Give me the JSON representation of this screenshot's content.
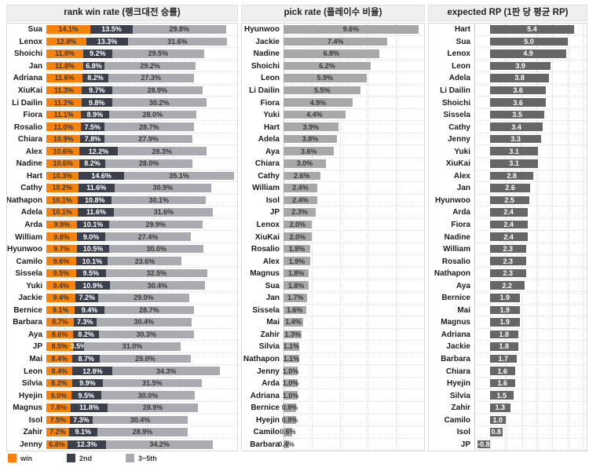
{
  "panels": {
    "rank": {
      "title": "rank win rate (랭크대전 승률)"
    },
    "pick": {
      "title": "pick rate (플레이수 비율)"
    },
    "rp": {
      "title": "expected RP (1판 당 평균 RP)"
    }
  },
  "legend": {
    "items": [
      {
        "label": "win",
        "color": "#f6820c"
      },
      {
        "label": "2nd",
        "color": "#3b3f4c"
      },
      {
        "label": "3~5th",
        "color": "#a9abb0"
      }
    ]
  },
  "colors": {
    "win": "#f6820c",
    "second": "#3b3f4c",
    "third_fifth": "#a9abb0",
    "pick_bar": "#a8a8a8",
    "rp_bar": "#666666",
    "text_dark": "#3a3a3a",
    "text_light": "#ffffff",
    "header_bg": "#efefef",
    "grid": "#d8d8d8"
  },
  "chart_data": [
    {
      "type": "bar",
      "title": "rank win rate (랭크대전 승률)",
      "orientation": "horizontal",
      "stacked": true,
      "legend_position": "bottom",
      "grid": "row-separators",
      "xlim": [
        0,
        61
      ],
      "categories": [
        "Sua",
        "Lenox",
        "Shoichi",
        "Jan",
        "Adriana",
        "XiuKai",
        "Li Dailin",
        "Fiora",
        "Rosalio",
        "Chiara",
        "Alex",
        "Nadine",
        "Hart",
        "Cathy",
        "Nathapon",
        "Adela",
        "Arda",
        "William",
        "Hyunwoo",
        "Camilo",
        "Sissela",
        "Yuki",
        "Jackie",
        "Bernice",
        "Barbara",
        "Aya",
        "JP",
        "Mai",
        "Leon",
        "Silvia",
        "Hyejin",
        "Magnus",
        "Isol",
        "Zahir",
        "Jenny"
      ],
      "series": [
        {
          "name": "win",
          "values": [
            14.1,
            12.8,
            11.8,
            11.8,
            11.6,
            11.3,
            11.2,
            11.1,
            11.0,
            10.9,
            10.6,
            10.6,
            10.3,
            10.2,
            10.1,
            10.1,
            9.9,
            9.8,
            9.7,
            9.6,
            9.5,
            9.4,
            9.4,
            9.1,
            8.7,
            8.6,
            8.5,
            8.4,
            8.4,
            8.2,
            8.0,
            7.8,
            7.5,
            7.2,
            6.8
          ]
        },
        {
          "name": "2nd",
          "values": [
            13.5,
            13.3,
            9.2,
            6.8,
            8.2,
            9.7,
            9.8,
            8.9,
            7.5,
            7.8,
            12.2,
            8.2,
            14.6,
            11.6,
            10.8,
            11.6,
            10.1,
            9.0,
            10.5,
            10.1,
            9.5,
            10.9,
            7.2,
            9.4,
            7.3,
            8.2,
            3.5,
            8.7,
            12.8,
            9.9,
            9.5,
            11.8,
            7.3,
            9.1,
            12.3
          ]
        },
        {
          "name": "3~5th",
          "values": [
            29.8,
            31.6,
            29.5,
            29.2,
            27.3,
            28.9,
            30.2,
            28.0,
            28.7,
            27.9,
            28.3,
            28.0,
            35.1,
            30.9,
            30.1,
            31.6,
            29.9,
            27.4,
            30.0,
            23.6,
            32.5,
            30.4,
            29.0,
            28.7,
            30.4,
            30.3,
            31.0,
            29.0,
            34.3,
            31.5,
            30.0,
            28.9,
            30.4,
            28.9,
            34.2
          ]
        }
      ]
    },
    {
      "type": "bar",
      "title": "pick rate (플레이수 비율)",
      "orientation": "horizontal",
      "grid": "vertical-dotted-every-2pct",
      "xlim": [
        0,
        10
      ],
      "categories": [
        "Hyunwoo",
        "Jackie",
        "Nadine",
        "Shoichi",
        "Leon",
        "Li Dailin",
        "Fiora",
        "Yuki",
        "Hart",
        "Adela",
        "Aya",
        "Chiara",
        "Cathy",
        "William",
        "Isol",
        "JP",
        "Lenox",
        "XiuKai",
        "Rosalio",
        "Alex",
        "Magnus",
        "Sua",
        "Jan",
        "Sissela",
        "Mai",
        "Zahir",
        "Silvia",
        "Nathapon",
        "Jenny",
        "Arda",
        "Adriana",
        "Bernice",
        "Hyejin",
        "Camilo",
        "Barbara"
      ],
      "values": [
        9.6,
        7.4,
        6.8,
        6.2,
        5.9,
        5.5,
        4.9,
        4.4,
        3.9,
        3.8,
        3.6,
        3.0,
        2.6,
        2.4,
        2.4,
        2.3,
        2.0,
        2.0,
        1.9,
        1.9,
        1.8,
        1.8,
        1.7,
        1.6,
        1.4,
        1.3,
        1.1,
        1.1,
        1.0,
        1.0,
        1.0,
        0.9,
        0.9,
        0.6,
        0.4
      ]
    },
    {
      "type": "bar",
      "title": "expected RP (1판 당 평균 RP)",
      "orientation": "horizontal",
      "grid": "vertical-dotted-every-1",
      "xlim": [
        -1,
        6.2
      ],
      "categories": [
        "Hart",
        "Sua",
        "Lenox",
        "Leon",
        "Adela",
        "Li Dailin",
        "Shoichi",
        "Sissela",
        "Cathy",
        "Jenny",
        "Yuki",
        "XiuKai",
        "Alex",
        "Jan",
        "Hyunwoo",
        "Arda",
        "Fiora",
        "Nadine",
        "William",
        "Rosalio",
        "Nathapon",
        "Aya",
        "Bernice",
        "Mai",
        "Magnus",
        "Adriana",
        "Jackie",
        "Barbara",
        "Chiara",
        "Hyejin",
        "Silvia",
        "Zahir",
        "Camilo",
        "Isol",
        "JP"
      ],
      "values": [
        5.4,
        5.0,
        4.9,
        3.9,
        3.8,
        3.6,
        3.6,
        3.5,
        3.4,
        3.3,
        3.1,
        3.1,
        2.8,
        2.6,
        2.5,
        2.4,
        2.4,
        2.4,
        2.3,
        2.3,
        2.3,
        2.2,
        1.9,
        1.9,
        1.9,
        1.8,
        1.8,
        1.7,
        1.6,
        1.6,
        1.5,
        1.3,
        1.0,
        0.8,
        -0.8
      ]
    }
  ]
}
